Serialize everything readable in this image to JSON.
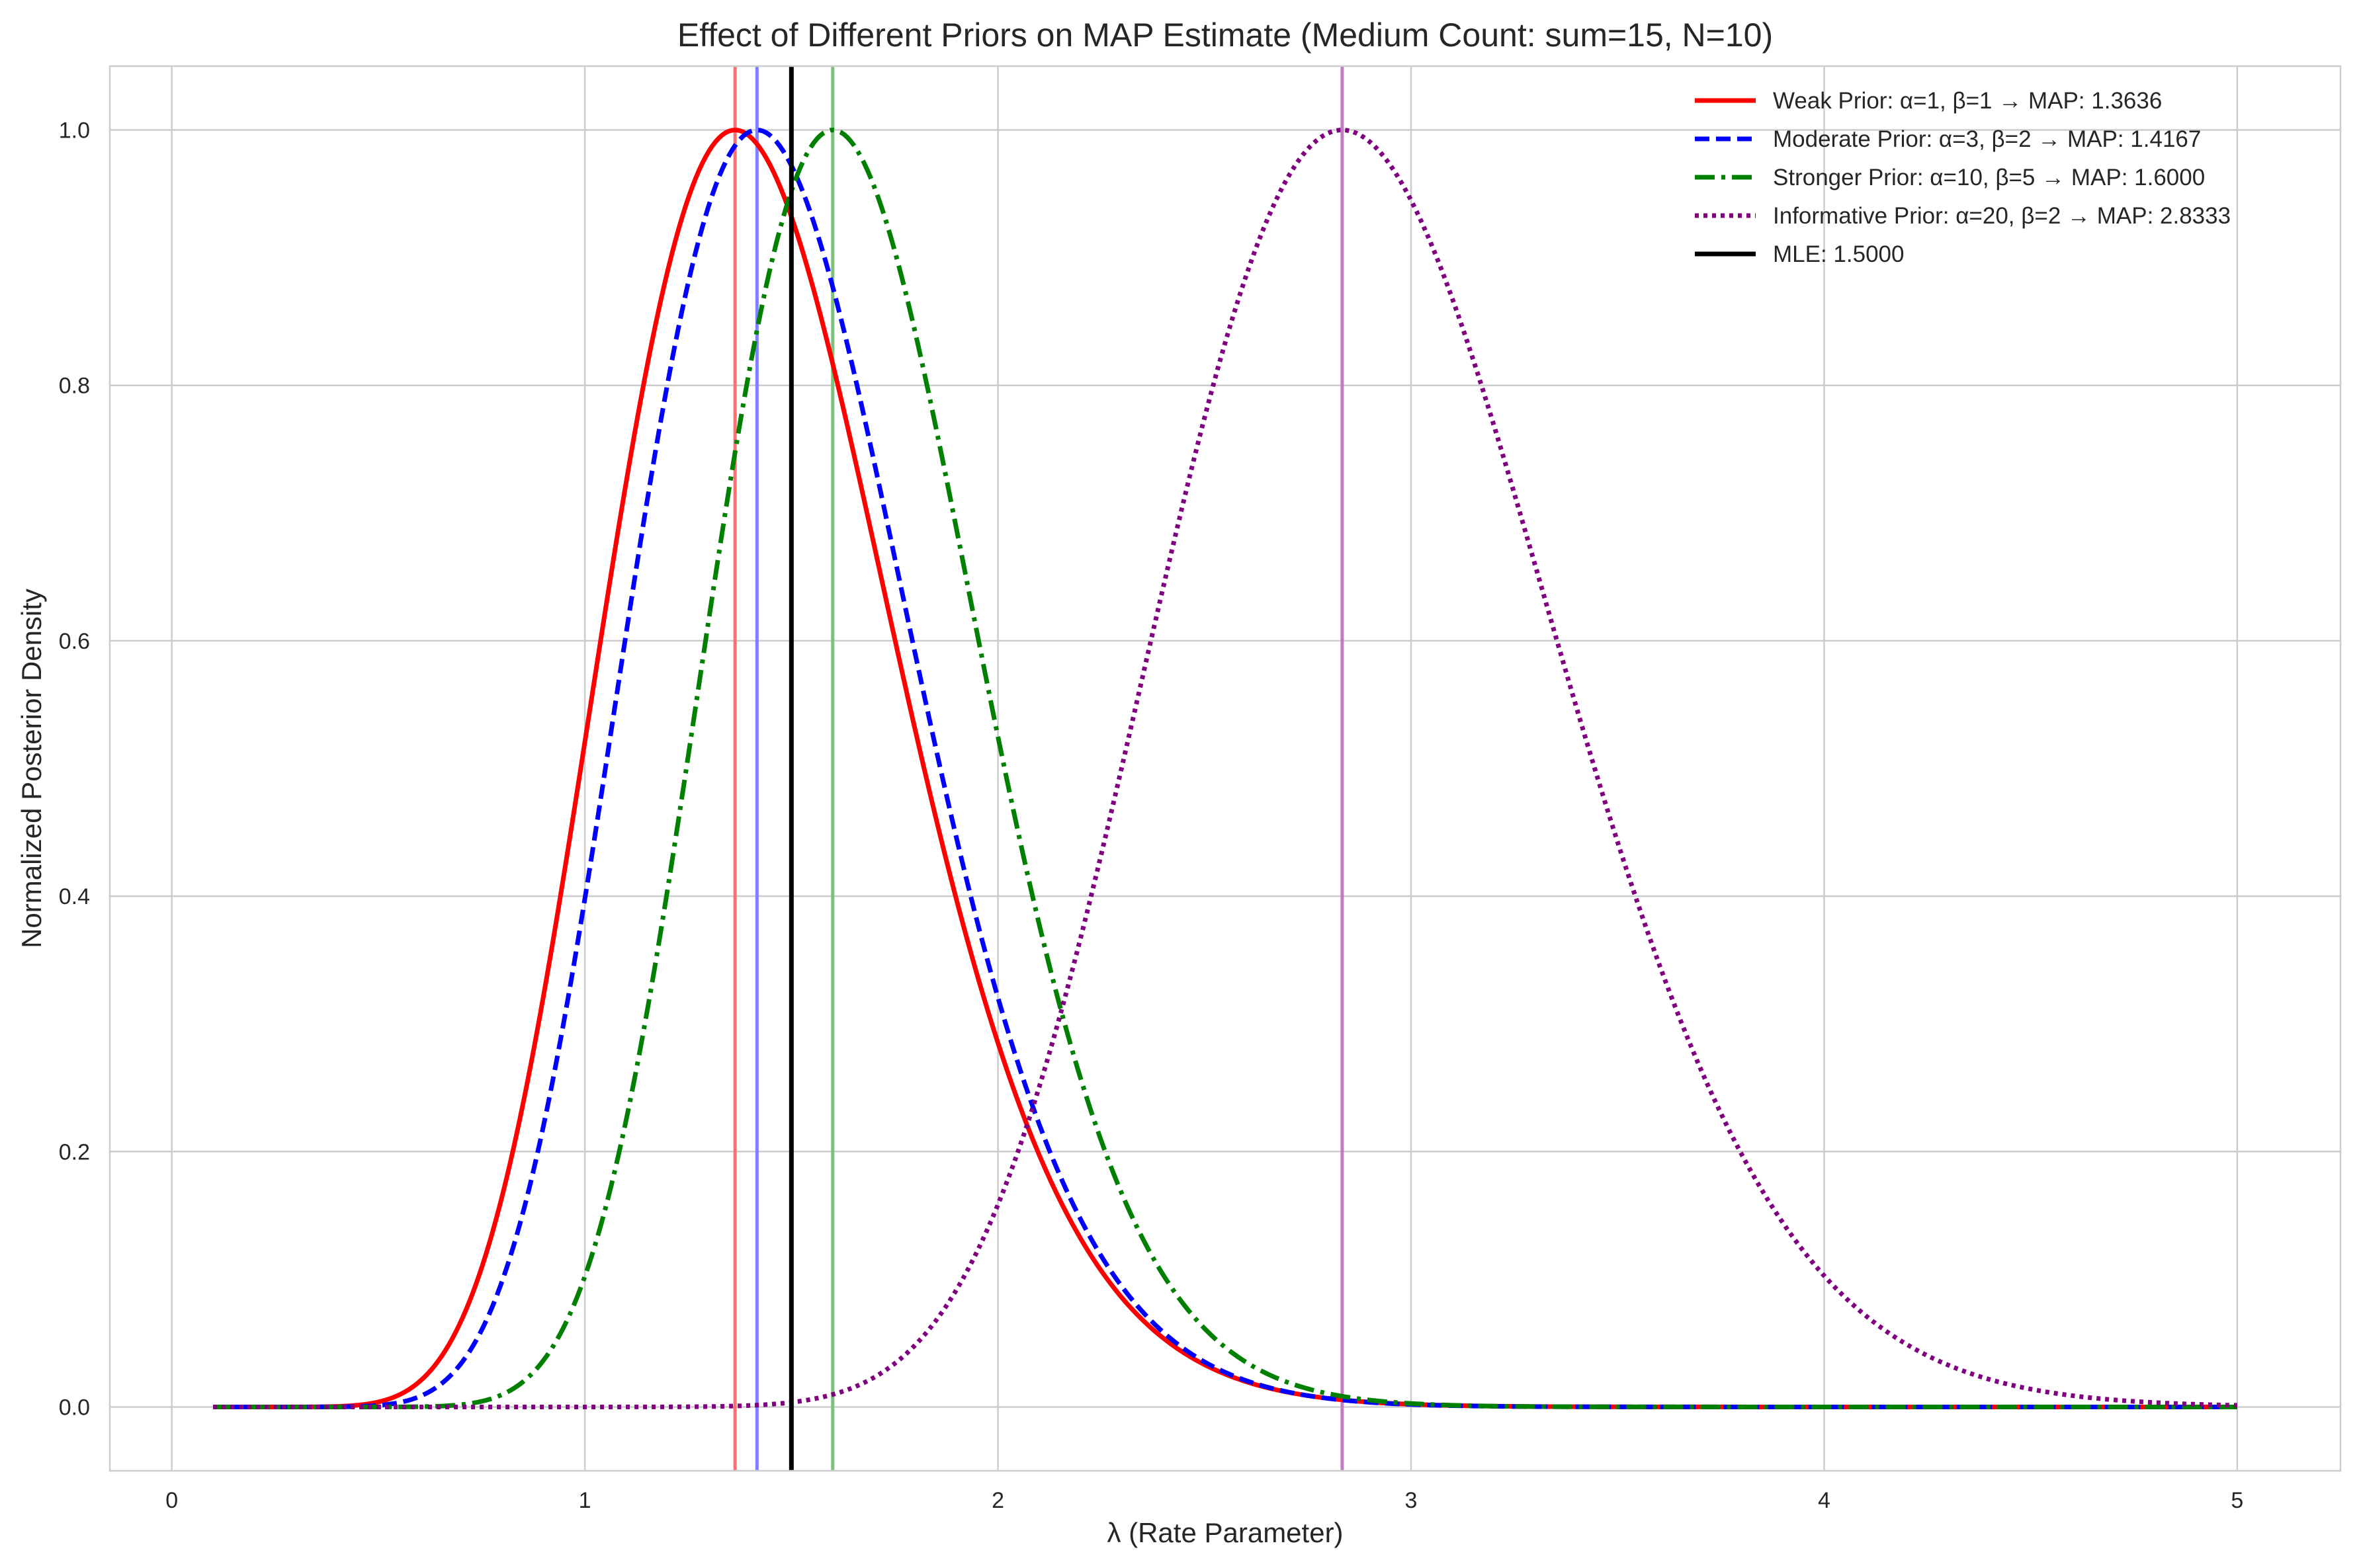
{
  "chart_data": {
    "type": "line",
    "title": "Effect of Different Priors on MAP Estimate (Medium Count: sum=15, N=10)",
    "xlabel": "λ (Rate Parameter)",
    "ylabel": "Normalized Posterior Density",
    "xlim": [
      -0.15,
      5.25
    ],
    "ylim": [
      -0.05,
      1.05
    ],
    "xticks": [
      0,
      1,
      2,
      3,
      4,
      5
    ],
    "yticks": [
      0.0,
      0.2,
      0.4,
      0.6,
      0.8,
      1.0
    ],
    "xtick_labels": [
      "0",
      "1",
      "2",
      "3",
      "4",
      "5"
    ],
    "ytick_labels": [
      "0.0",
      "0.2",
      "0.4",
      "0.6",
      "0.8",
      "1.0"
    ],
    "grid": true,
    "legend_position": "top-right",
    "x_range": [
      0.1,
      5.0
    ],
    "observations": {
      "sum": 15,
      "n": 10
    },
    "series": [
      {
        "name": "Weak Prior: α=1, β=1 → MAP: 1.3636",
        "alpha": 1,
        "beta": 1,
        "map": 1.3636,
        "color": "#ff0000",
        "dash": "solid",
        "ref_line_color": "#ff6f6f"
      },
      {
        "name": "Moderate Prior: α=3, β=2 → MAP: 1.4167",
        "alpha": 3,
        "beta": 2,
        "map": 1.4167,
        "color": "#0000ff",
        "dash": "dashed",
        "ref_line_color": "#7f7fff"
      },
      {
        "name": "Stronger Prior: α=10, β=5 → MAP: 1.6000",
        "alpha": 10,
        "beta": 5,
        "map": 1.6,
        "color": "#008000",
        "dash": "dashdot",
        "ref_line_color": "#7fbf7f"
      },
      {
        "name": "Informative Prior: α=20, β=2 → MAP: 2.8333",
        "alpha": 20,
        "beta": 2,
        "map": 2.8333,
        "color": "#800080",
        "dash": "dotted",
        "ref_line_color": "#bf7fbf"
      }
    ],
    "mle": {
      "name": "MLE: 1.5000",
      "value": 1.5,
      "color": "#000000"
    }
  }
}
